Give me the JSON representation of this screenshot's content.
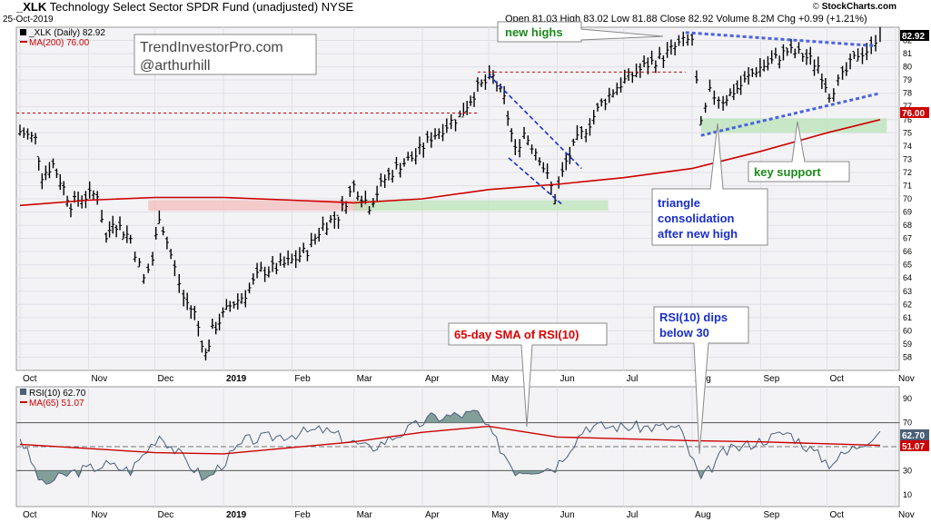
{
  "header": {
    "symbol": "_XLK",
    "fund_name": "Technology Select Sector SPDR Fund (unadjusted)",
    "exchange": "NYSE",
    "date": "25-Oct-2019",
    "quote": "Open 81.03  High 83.02  Low 81.88  Close 82.92  Volume 8.2M  Chg +0.99 (+1.21%)",
    "brand_left": "©",
    "brand_right": "StockCharts.com"
  },
  "price_panel": {
    "legend_symbol": "_XLK (Daily) 82.92",
    "legend_ma": "MA(200) 76.00",
    "watermark_line1": "TrendInvestorPro.com",
    "watermark_line2": "@arthurhill",
    "last_price_label": "82.92",
    "ma_label": "76.00"
  },
  "rsi_panel": {
    "legend_rsi": "RSI(10) 62.70",
    "legend_ma": "MA(65) 51.07",
    "rsi_label": "62.70",
    "ma_label": "51.07"
  },
  "annotations": {
    "new_highs": "new highs",
    "triangle": [
      "triangle",
      "consolidation",
      "after new high"
    ],
    "key_support": "key support",
    "sma_rsi": "65-day SMA of RSI(10)",
    "rsi_dip": [
      "RSI(10) dips",
      "below 30"
    ]
  },
  "colors": {
    "up_bar": "#000000",
    "ma200": "#cc0000",
    "trendline": "#4a63e0",
    "channel": "#1a2fc9",
    "support_fill": "#b9e3b5",
    "resistance_fill": "#f3b9b9",
    "rsi_line": "#4b5f78",
    "rsi_fill": "#6f8f88",
    "new_highs_text": "#1a8a1a",
    "key_support_text": "#1a8a1a",
    "sma_text": "#dd0000",
    "blue_text": "#1a2fc9"
  },
  "chart_data": [
    {
      "type": "ohlc",
      "title": "_XLK (Daily) 82.92",
      "ylim": [
        57,
        83
      ],
      "y_ticks": [
        58,
        59,
        60,
        61,
        62,
        63,
        64,
        65,
        66,
        67,
        68,
        69,
        70,
        71,
        72,
        73,
        74,
        75,
        76,
        77,
        78,
        79,
        80,
        81,
        82
      ],
      "x_ticks": [
        "Oct",
        "Nov",
        "Dec",
        "2019",
        "Feb",
        "Mar",
        "Apr",
        "May",
        "Jun",
        "Jul",
        "Aug",
        "Sep",
        "Oct",
        "Nov"
      ],
      "series": [
        {
          "name": "_XLK",
          "points": [
            [
              "2018-10-01",
              75.1
            ],
            [
              "2018-10-08",
              74.5
            ],
            [
              "2018-10-11",
              71.8
            ],
            [
              "2018-10-16",
              72.6
            ],
            [
              "2018-10-24",
              69.6
            ],
            [
              "2018-10-29",
              70.1
            ],
            [
              "2018-11-05",
              70.4
            ],
            [
              "2018-11-09",
              66.9
            ],
            [
              "2018-11-12",
              68.4
            ],
            [
              "2018-11-20",
              67.0
            ],
            [
              "2018-11-26",
              63.9
            ],
            [
              "2018-11-30",
              65.4
            ],
            [
              "2018-12-03",
              68.8
            ],
            [
              "2018-12-10",
              64.7
            ],
            [
              "2018-12-14",
              62.5
            ],
            [
              "2018-12-19",
              61.3
            ],
            [
              "2018-12-24",
              58.2
            ],
            [
              "2018-12-27",
              60.0
            ],
            [
              "2019-01-04",
              61.9
            ],
            [
              "2019-01-11",
              62.8
            ],
            [
              "2019-01-18",
              64.5
            ],
            [
              "2019-01-25",
              64.8
            ],
            [
              "2019-02-01",
              65.3
            ],
            [
              "2019-02-08",
              66.1
            ],
            [
              "2019-02-15",
              68.0
            ],
            [
              "2019-02-22",
              68.7
            ],
            [
              "2019-03-01",
              71.0
            ],
            [
              "2019-03-08",
              69.5
            ],
            [
              "2019-03-15",
              71.5
            ],
            [
              "2019-03-22",
              72.6
            ],
            [
              "2019-03-29",
              73.3
            ],
            [
              "2019-04-05",
              74.7
            ],
            [
              "2019-04-12",
              75.6
            ],
            [
              "2019-04-18",
              76.3
            ],
            [
              "2019-04-26",
              78.4
            ],
            [
              "2019-05-03",
              79.2
            ],
            [
              "2019-05-08",
              77.5
            ],
            [
              "2019-05-13",
              73.6
            ],
            [
              "2019-05-17",
              75.0
            ],
            [
              "2019-05-24",
              73.2
            ],
            [
              "2019-05-31",
              70.1
            ],
            [
              "2019-06-05",
              72.8
            ],
            [
              "2019-06-10",
              74.4
            ],
            [
              "2019-06-14",
              75.3
            ],
            [
              "2019-06-21",
              77.2
            ],
            [
              "2019-06-28",
              78.5
            ],
            [
              "2019-07-05",
              79.4
            ],
            [
              "2019-07-12",
              80.2
            ],
            [
              "2019-07-19",
              80.8
            ],
            [
              "2019-07-26",
              81.7
            ],
            [
              "2019-08-01",
              82.1
            ],
            [
              "2019-08-05",
              75.5
            ],
            [
              "2019-08-09",
              78.0
            ],
            [
              "2019-08-15",
              77.5
            ],
            [
              "2019-08-23",
              78.6
            ],
            [
              "2019-08-30",
              79.8
            ],
            [
              "2019-09-06",
              80.4
            ],
            [
              "2019-09-13",
              81.2
            ],
            [
              "2019-09-20",
              80.9
            ],
            [
              "2019-09-27",
              80.1
            ],
            [
              "2019-10-02",
              78.0
            ],
            [
              "2019-10-08",
              79.2
            ],
            [
              "2019-10-15",
              81.0
            ],
            [
              "2019-10-21",
              81.4
            ],
            [
              "2019-10-25",
              82.92
            ]
          ]
        },
        {
          "name": "MA(200)",
          "points": [
            [
              "2018-10-01",
              69.5
            ],
            [
              "2018-11-01",
              69.9
            ],
            [
              "2018-12-01",
              70.1
            ],
            [
              "2019-01-01",
              70.1
            ],
            [
              "2019-02-01",
              69.9
            ],
            [
              "2019-03-01",
              69.7
            ],
            [
              "2019-04-01",
              70.0
            ],
            [
              "2019-05-01",
              70.7
            ],
            [
              "2019-06-01",
              71.1
            ],
            [
              "2019-07-01",
              71.6
            ],
            [
              "2019-08-01",
              72.3
            ],
            [
              "2019-09-01",
              73.6
            ],
            [
              "2019-10-01",
              75.0
            ],
            [
              "2019-10-25",
              76.0
            ]
          ]
        }
      ]
    },
    {
      "type": "line",
      "title": "RSI(10) 62.70",
      "ylim": [
        0,
        100
      ],
      "y_ticks": [
        10,
        30,
        50,
        70,
        90
      ],
      "reference_lines": [
        30,
        50,
        70
      ],
      "series": [
        {
          "name": "RSI(10)",
          "points": [
            [
              "2018-10-01",
              58
            ],
            [
              "2018-10-11",
              18
            ],
            [
              "2018-10-24",
              28
            ],
            [
              "2018-11-09",
              35
            ],
            [
              "2018-11-20",
              30
            ],
            [
              "2018-12-03",
              60
            ],
            [
              "2018-12-24",
              22
            ],
            [
              "2019-01-11",
              55
            ],
            [
              "2019-02-15",
              64
            ],
            [
              "2019-03-08",
              48
            ],
            [
              "2019-04-05",
              74
            ],
            [
              "2019-04-26",
              78
            ],
            [
              "2019-05-13",
              30
            ],
            [
              "2019-05-31",
              33
            ],
            [
              "2019-06-14",
              67
            ],
            [
              "2019-07-26",
              66
            ],
            [
              "2019-08-05",
              22
            ],
            [
              "2019-08-15",
              45
            ],
            [
              "2019-09-13",
              62
            ],
            [
              "2019-10-02",
              36
            ],
            [
              "2019-10-25",
              62.7
            ]
          ]
        },
        {
          "name": "MA(65)",
          "points": [
            [
              "2018-10-01",
              52
            ],
            [
              "2018-12-01",
              45
            ],
            [
              "2019-01-01",
              44
            ],
            [
              "2019-03-01",
              54
            ],
            [
              "2019-04-01",
              62
            ],
            [
              "2019-05-01",
              67
            ],
            [
              "2019-06-01",
              58
            ],
            [
              "2019-08-01",
              55
            ],
            [
              "2019-09-01",
              54
            ],
            [
              "2019-10-25",
              51.07
            ]
          ]
        }
      ]
    }
  ]
}
